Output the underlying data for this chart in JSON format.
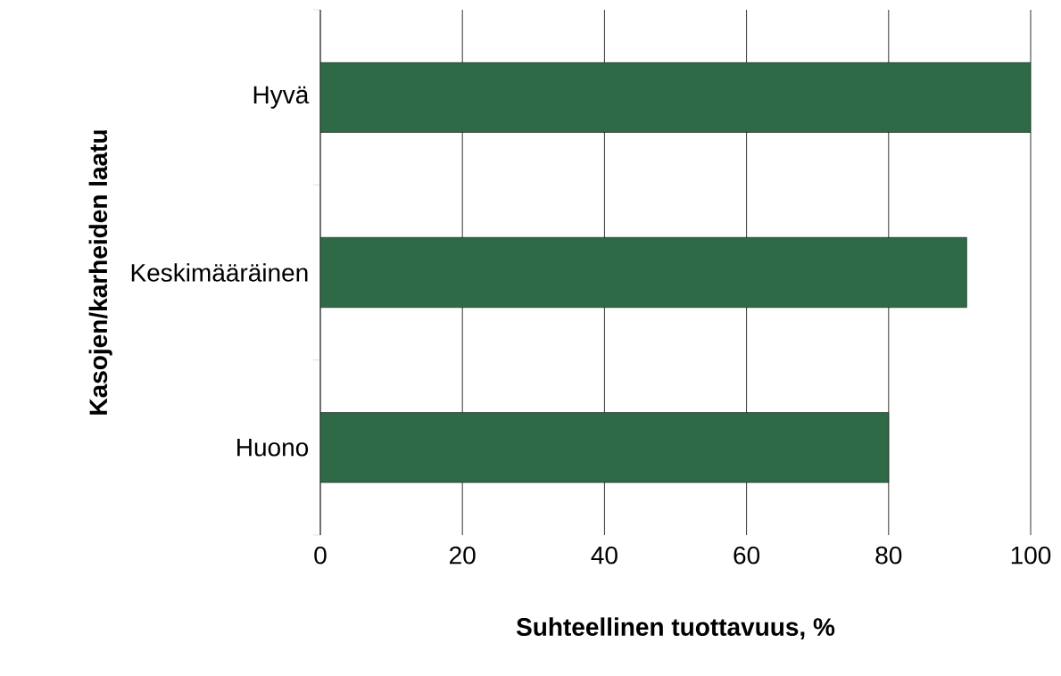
{
  "chart_data": {
    "type": "bar",
    "orientation": "horizontal",
    "categories": [
      "Hyvä",
      "Keskimääräinen",
      "Huono"
    ],
    "values": [
      100,
      91,
      80
    ],
    "color": "#2d6a45",
    "xlabel": "Suhteellinen tuottavuus, %",
    "ylabel": "Kasojen/karheiden laatu",
    "xlim": [
      0,
      100
    ],
    "xticks": [
      0,
      20,
      40,
      60,
      80,
      100
    ],
    "grid": "x"
  }
}
